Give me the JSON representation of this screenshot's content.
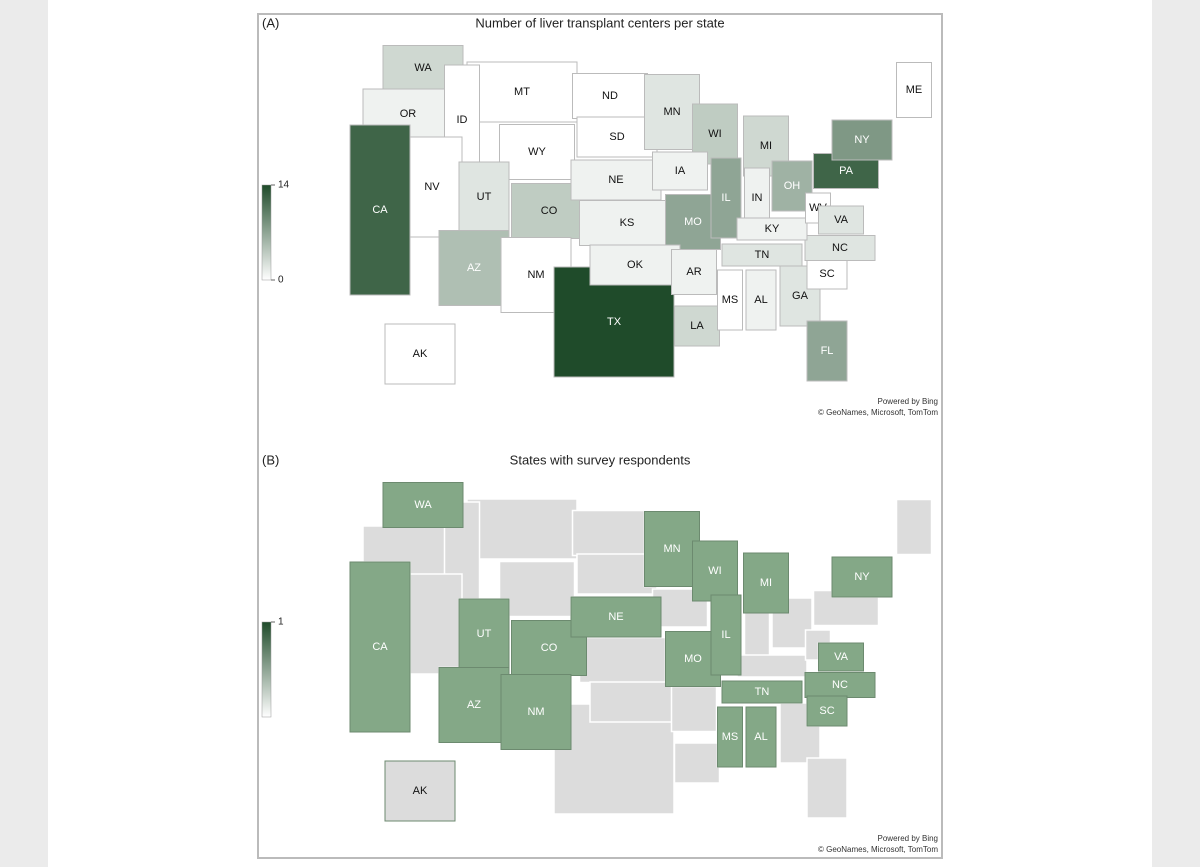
{
  "panels": [
    {
      "label": "(A)",
      "title": "Number of liver transplant centers per state",
      "legend": {
        "range": [
          0,
          14
        ],
        "ticks": [
          14,
          0
        ],
        "colors": [
          "#ffffff",
          "#1f4b2a"
        ]
      },
      "states": [
        {
          "name": "WA",
          "value": 3
        },
        {
          "name": "OR",
          "value": 1
        },
        {
          "name": "MT",
          "value": 0
        },
        {
          "name": "ID",
          "value": 0
        },
        {
          "name": "ND",
          "value": 0
        },
        {
          "name": "SD",
          "value": 0
        },
        {
          "name": "WY",
          "value": 0
        },
        {
          "name": "NV",
          "value": 0
        },
        {
          "name": "UT",
          "value": 2
        },
        {
          "name": "CO",
          "value": 4
        },
        {
          "name": "NE",
          "value": 1
        },
        {
          "name": "KS",
          "value": 1
        },
        {
          "name": "MN",
          "value": 2
        },
        {
          "name": "WI",
          "value": 4
        },
        {
          "name": "MI",
          "value": 3
        },
        {
          "name": "IA",
          "value": 1
        },
        {
          "name": "MO",
          "value": 7
        },
        {
          "name": "IL",
          "value": 7
        },
        {
          "name": "IN",
          "value": 1
        },
        {
          "name": "OH",
          "value": 6
        },
        {
          "name": "PA",
          "value": 12
        },
        {
          "name": "NY",
          "value": 8
        },
        {
          "name": "ME",
          "value": 0
        },
        {
          "name": "CA",
          "value": 12
        },
        {
          "name": "AZ",
          "value": 5
        },
        {
          "name": "NM",
          "value": 0
        },
        {
          "name": "TX",
          "value": 14
        },
        {
          "name": "OK",
          "value": 1
        },
        {
          "name": "AR",
          "value": 1
        },
        {
          "name": "LA",
          "value": 3
        },
        {
          "name": "MS",
          "value": 0
        },
        {
          "name": "AL",
          "value": 1
        },
        {
          "name": "GA",
          "value": 2
        },
        {
          "name": "FL",
          "value": 7
        },
        {
          "name": "SC",
          "value": 0
        },
        {
          "name": "NC",
          "value": 2
        },
        {
          "name": "TN",
          "value": 2
        },
        {
          "name": "KY",
          "value": 1
        },
        {
          "name": "WV",
          "value": 0
        },
        {
          "name": "VA",
          "value": 2
        },
        {
          "name": "AK",
          "value": 0
        }
      ],
      "credit": [
        "Powered by Bing",
        "© GeoNames, Microsoft, TomTom"
      ]
    },
    {
      "label": "(B)",
      "title": "States with survey respondents",
      "legend": {
        "range": [
          0,
          1
        ],
        "ticks": [
          1
        ],
        "colors": [
          "#dcdcdc",
          "#84a887"
        ]
      },
      "states": [
        {
          "name": "WA",
          "value": 1
        },
        {
          "name": "MN",
          "value": 1
        },
        {
          "name": "WI",
          "value": 1
        },
        {
          "name": "MI",
          "value": 1
        },
        {
          "name": "NY",
          "value": 1
        },
        {
          "name": "CA",
          "value": 1
        },
        {
          "name": "UT",
          "value": 1
        },
        {
          "name": "CO",
          "value": 1
        },
        {
          "name": "NE",
          "value": 1
        },
        {
          "name": "MO",
          "value": 1
        },
        {
          "name": "IL",
          "value": 1
        },
        {
          "name": "VA",
          "value": 1
        },
        {
          "name": "AZ",
          "value": 1
        },
        {
          "name": "NM",
          "value": 1
        },
        {
          "name": "TN",
          "value": 1
        },
        {
          "name": "NC",
          "value": 1
        },
        {
          "name": "MS",
          "value": 1
        },
        {
          "name": "AL",
          "value": 1
        },
        {
          "name": "SC",
          "value": 1
        },
        {
          "name": "AK",
          "value": 0
        }
      ],
      "credit": [
        "Powered by Bing",
        "© GeoNames, Microsoft, TomTom"
      ]
    }
  ]
}
